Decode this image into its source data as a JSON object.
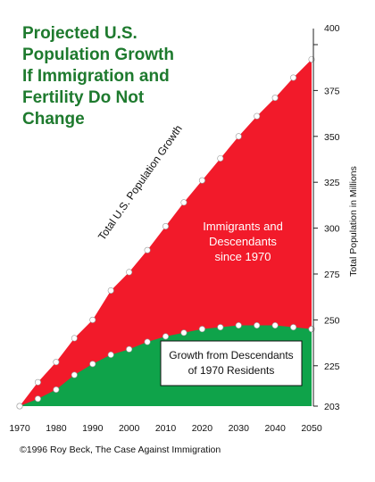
{
  "chart_data": {
    "type": "area",
    "title_lines": [
      "Projected U.S.",
      "Population Growth",
      "If Immigration and",
      "Fertility Do Not",
      "Change"
    ],
    "ylabel": "Total Population in Millions",
    "x": [
      1970,
      1975,
      1980,
      1985,
      1990,
      1995,
      2000,
      2005,
      2010,
      2015,
      2020,
      2025,
      2030,
      2035,
      2040,
      2045,
      2050
    ],
    "x_ticks": [
      "1970",
      "1980",
      "1990",
      "2000",
      "2010",
      "2020",
      "2030",
      "2040",
      "2050"
    ],
    "y_ticks": [
      "203",
      "225",
      "250",
      "275",
      "300",
      "325",
      "350",
      "375",
      "400"
    ],
    "xlim": [
      1970,
      2050
    ],
    "ylim": [
      203,
      400
    ],
    "series": [
      {
        "name": "Total U.S. Population Growth",
        "values": [
          203,
          216,
          227,
          240,
          250,
          266,
          276,
          288,
          301,
          314,
          326,
          338,
          350,
          361,
          371,
          382,
          392
        ]
      },
      {
        "name": "Growth from Descendants of 1970 Residents",
        "values": [
          203,
          207,
          212,
          220,
          226,
          231,
          234,
          238,
          241,
          243,
          245,
          246,
          247,
          247,
          247,
          246,
          245
        ]
      }
    ],
    "annotations": {
      "total_label": "Total U.S. Population Growth",
      "immigrants_label": [
        "Immigrants and",
        "Descendants",
        "since 1970"
      ],
      "descendants_label": [
        "Growth from Descendants",
        "of 1970 Residents"
      ]
    },
    "colors": {
      "immigrant_area": "#f21a2a",
      "descendant_area": "#0fa34a",
      "title": "#1e7a2e",
      "point_fill": "#ffffff"
    }
  },
  "footer": {
    "copyright": "©1996 Roy Beck, The Case Against Immigration"
  }
}
